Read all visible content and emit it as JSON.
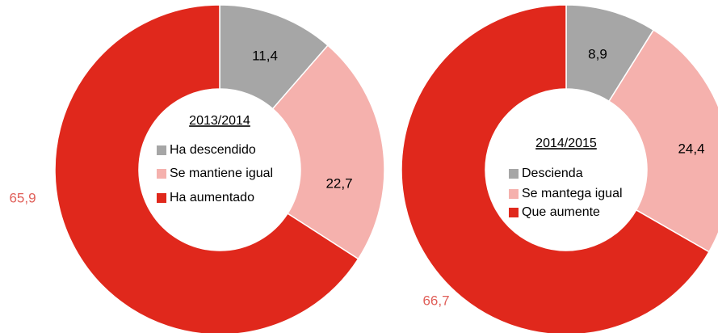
{
  "chart_data": [
    {
      "type": "pie",
      "title": "2013/2014",
      "categories": [
        "Ha descendido",
        "Se mantiene igual",
        "Ha aumentado"
      ],
      "values": [
        11.4,
        22.7,
        65.9
      ],
      "value_labels": [
        "11,4",
        "22,7",
        "65,9"
      ],
      "colors": [
        "#a6a6a6",
        "#f5b1ad",
        "#e0281c"
      ]
    },
    {
      "type": "pie",
      "title": "2014/2015",
      "categories": [
        "Descienda",
        "Se mantega igual",
        "Que aumente"
      ],
      "values": [
        8.9,
        24.4,
        66.7
      ],
      "value_labels": [
        "8,9",
        "24,4",
        "66,7"
      ],
      "colors": [
        "#a6a6a6",
        "#f5b1ad",
        "#e0281c"
      ]
    }
  ]
}
